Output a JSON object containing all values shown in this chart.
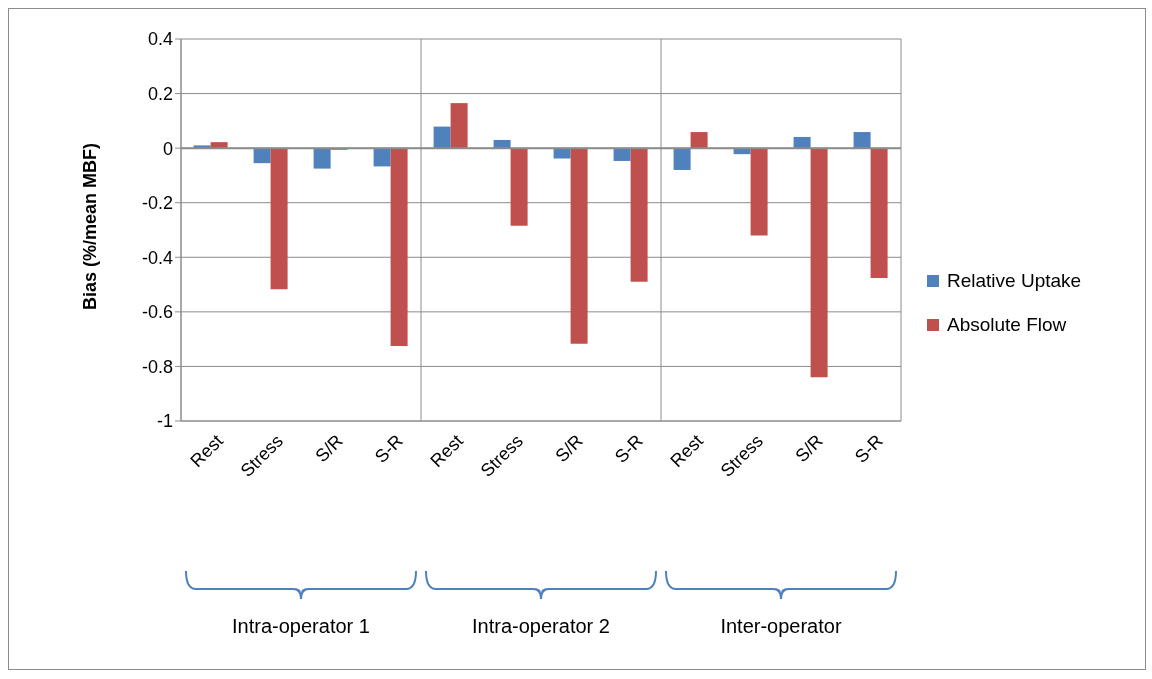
{
  "chart_data": {
    "type": "bar",
    "ylabel": "Bias (%/mean MBF)",
    "categories": [
      "Rest",
      "Stress",
      "S/R",
      "S-R",
      "Rest",
      "Stress",
      "S/R",
      "S-R",
      "Rest",
      "Stress",
      "S/R",
      "S-R"
    ],
    "series": [
      {
        "name": "Relative Uptake",
        "color": "#4f81bd",
        "values": [
          0.01,
          -0.055,
          -0.075,
          -0.067,
          0.079,
          0.03,
          -0.038,
          -0.047,
          -0.08,
          -0.022,
          0.041,
          0.059
        ]
      },
      {
        "name": "Absolute Flow",
        "color": "#c0504d",
        "values": [
          0.022,
          -0.517,
          -0.006,
          -0.725,
          0.165,
          -0.284,
          -0.717,
          -0.49,
          0.059,
          -0.32,
          -0.84,
          -0.476
        ]
      }
    ],
    "ylim": [
      -1,
      0.4
    ],
    "yticks": [
      -1,
      -0.8,
      -0.6,
      -0.4,
      -0.2,
      0,
      0.2,
      0.4
    ],
    "grid": true,
    "legend": "right",
    "annotations": [
      "Intra-operator 1",
      "Intra-operator 2",
      "Inter-operator"
    ]
  }
}
